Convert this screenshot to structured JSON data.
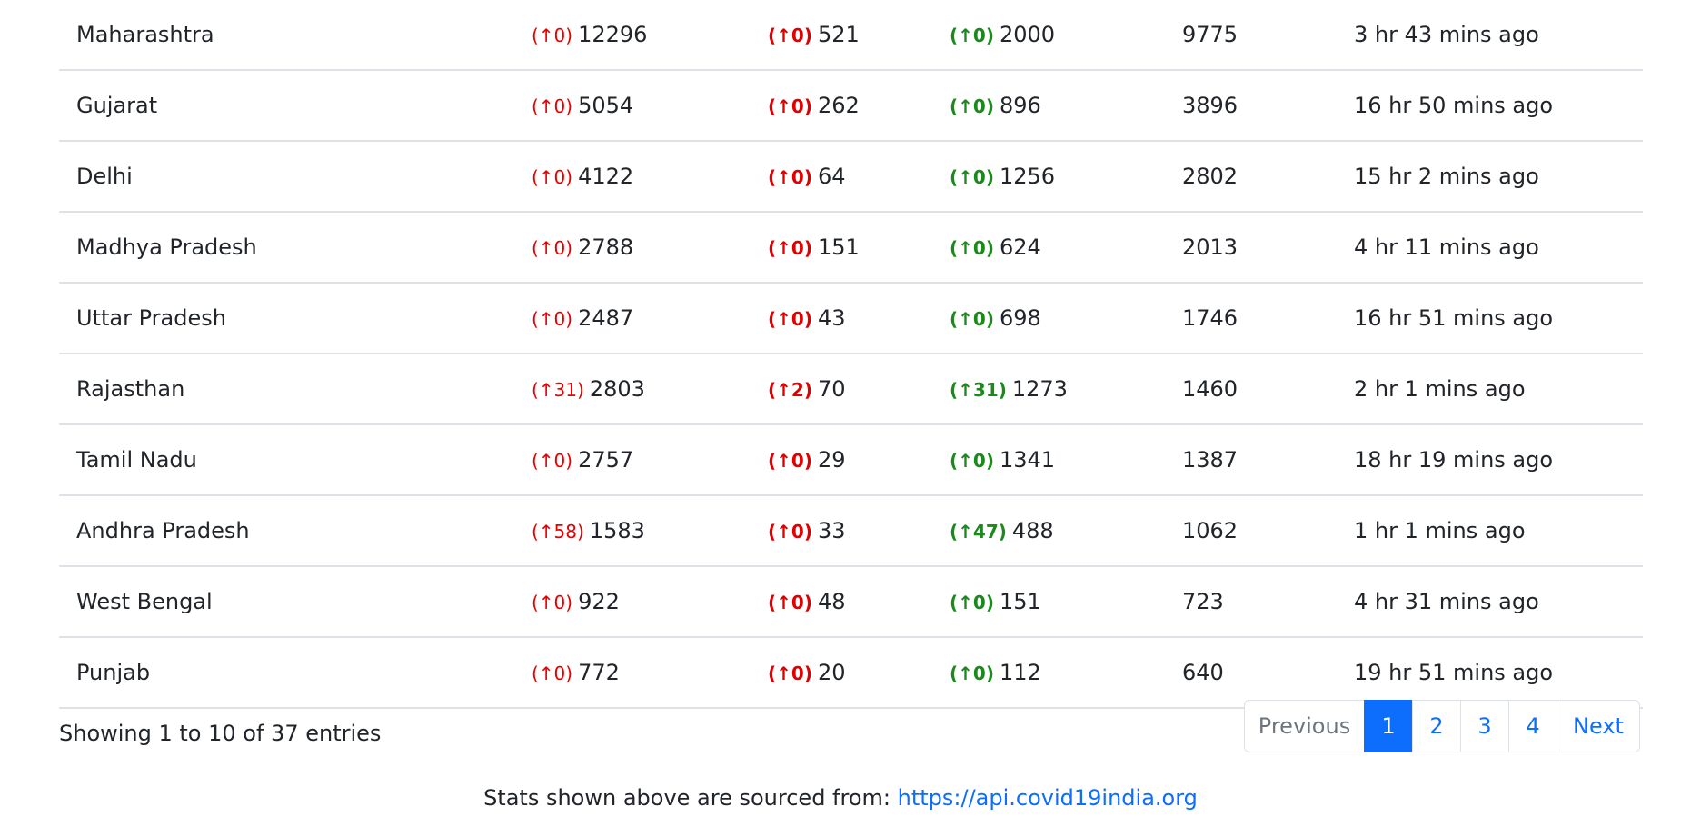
{
  "table": {
    "rows": [
      {
        "state": "Maharashtra",
        "conf_delta": "(↑0)",
        "confirmed": "12296",
        "death_delta": "(↑0)",
        "deaths": "521",
        "rec_delta": "(↑0)",
        "recovered": "2000",
        "active": "9775",
        "updated": "3 hr 43 mins ago"
      },
      {
        "state": "Gujarat",
        "conf_delta": "(↑0)",
        "confirmed": "5054",
        "death_delta": "(↑0)",
        "deaths": "262",
        "rec_delta": "(↑0)",
        "recovered": "896",
        "active": "3896",
        "updated": "16 hr 50 mins ago"
      },
      {
        "state": "Delhi",
        "conf_delta": "(↑0)",
        "confirmed": "4122",
        "death_delta": "(↑0)",
        "deaths": "64",
        "rec_delta": "(↑0)",
        "recovered": "1256",
        "active": "2802",
        "updated": "15 hr 2 mins ago"
      },
      {
        "state": "Madhya Pradesh",
        "conf_delta": "(↑0)",
        "confirmed": "2788",
        "death_delta": "(↑0)",
        "deaths": "151",
        "rec_delta": "(↑0)",
        "recovered": "624",
        "active": "2013",
        "updated": "4 hr 11 mins ago"
      },
      {
        "state": "Uttar Pradesh",
        "conf_delta": "(↑0)",
        "confirmed": "2487",
        "death_delta": "(↑0)",
        "deaths": "43",
        "rec_delta": "(↑0)",
        "recovered": "698",
        "active": "1746",
        "updated": "16 hr 51 mins ago"
      },
      {
        "state": "Rajasthan",
        "conf_delta": "(↑31)",
        "confirmed": "2803",
        "death_delta": "(↑2)",
        "deaths": "70",
        "rec_delta": "(↑31)",
        "recovered": "1273",
        "active": "1460",
        "updated": "2 hr 1 mins ago"
      },
      {
        "state": "Tamil Nadu",
        "conf_delta": "(↑0)",
        "confirmed": "2757",
        "death_delta": "(↑0)",
        "deaths": "29",
        "rec_delta": "(↑0)",
        "recovered": "1341",
        "active": "1387",
        "updated": "18 hr 19 mins ago"
      },
      {
        "state": "Andhra Pradesh",
        "conf_delta": "(↑58)",
        "confirmed": "1583",
        "death_delta": "(↑0)",
        "deaths": "33",
        "rec_delta": "(↑47)",
        "recovered": "488",
        "active": "1062",
        "updated": "1 hr 1 mins ago"
      },
      {
        "state": "West Bengal",
        "conf_delta": "(↑0)",
        "confirmed": "922",
        "death_delta": "(↑0)",
        "deaths": "48",
        "rec_delta": "(↑0)",
        "recovered": "151",
        "active": "723",
        "updated": "4 hr 31 mins ago"
      },
      {
        "state": "Punjab",
        "conf_delta": "(↑0)",
        "confirmed": "772",
        "death_delta": "(↑0)",
        "deaths": "20",
        "rec_delta": "(↑0)",
        "recovered": "112",
        "active": "640",
        "updated": "19 hr 51 mins ago"
      }
    ]
  },
  "info": {
    "showing": "Showing 1 to 10 of 37 entries"
  },
  "pagination": {
    "previous": "Previous",
    "pages": [
      "1",
      "2",
      "3",
      "4"
    ],
    "active_page": "1",
    "next": "Next"
  },
  "source": {
    "prefix": "Stats shown above are sourced from:",
    "link_text": "https://api.covid19india.org"
  },
  "colors": {
    "confirmed_delta": "#e60000",
    "death_delta": "#e00000",
    "recovered_delta": "#1a8a1a",
    "accent": "#0d6efd"
  }
}
